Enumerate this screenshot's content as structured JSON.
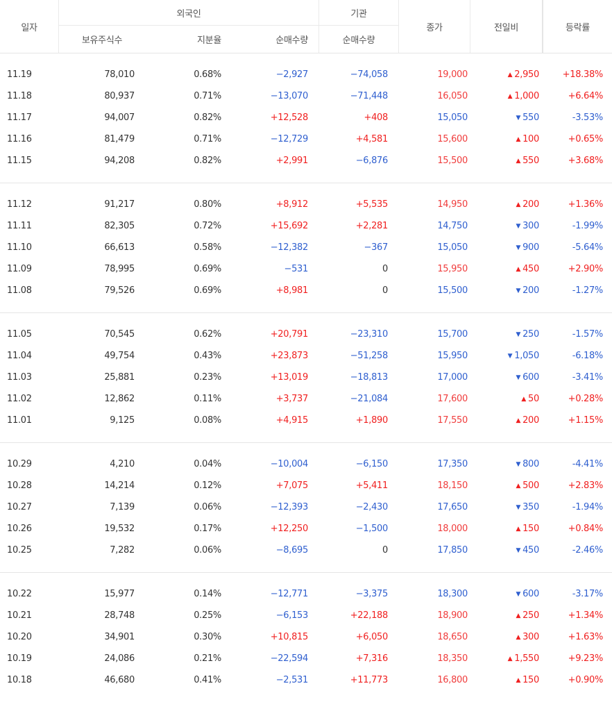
{
  "header": {
    "date": "일자",
    "foreign": "외국인",
    "holdings": "보유주식수",
    "ratio": "지분율",
    "foreign_net": "순매수량",
    "institution": "기관",
    "inst_net": "순매수량",
    "close": "종가",
    "change": "전일비",
    "rate": "등락률"
  },
  "colors": {
    "up": "#f02020",
    "down": "#2f5fcf"
  },
  "groups": [
    [
      [
        "11.19",
        "78,010",
        "0.68%",
        "−2,927",
        "−74,058",
        "19,000",
        "up",
        "2,950",
        "+18.38%"
      ],
      [
        "11.18",
        "80,937",
        "0.71%",
        "−13,070",
        "−71,448",
        "16,050",
        "up",
        "1,000",
        "+6.64%"
      ],
      [
        "11.17",
        "94,007",
        "0.82%",
        "+12,528",
        "+408",
        "15,050",
        "down",
        "550",
        "-3.53%"
      ],
      [
        "11.16",
        "81,479",
        "0.71%",
        "−12,729",
        "+4,581",
        "15,600",
        "up",
        "100",
        "+0.65%"
      ],
      [
        "11.15",
        "94,208",
        "0.82%",
        "+2,991",
        "−6,876",
        "15,500",
        "up",
        "550",
        "+3.68%"
      ]
    ],
    [
      [
        "11.12",
        "91,217",
        "0.80%",
        "+8,912",
        "+5,535",
        "14,950",
        "up",
        "200",
        "+1.36%"
      ],
      [
        "11.11",
        "82,305",
        "0.72%",
        "+15,692",
        "+2,281",
        "14,750",
        "down",
        "300",
        "-1.99%"
      ],
      [
        "11.10",
        "66,613",
        "0.58%",
        "−12,382",
        "−367",
        "15,050",
        "down",
        "900",
        "-5.64%"
      ],
      [
        "11.09",
        "78,995",
        "0.69%",
        "−531",
        "0",
        "15,950",
        "up",
        "450",
        "+2.90%"
      ],
      [
        "11.08",
        "79,526",
        "0.69%",
        "+8,981",
        "0",
        "15,500",
        "down",
        "200",
        "-1.27%"
      ]
    ],
    [
      [
        "11.05",
        "70,545",
        "0.62%",
        "+20,791",
        "−23,310",
        "15,700",
        "down",
        "250",
        "-1.57%"
      ],
      [
        "11.04",
        "49,754",
        "0.43%",
        "+23,873",
        "−51,258",
        "15,950",
        "down",
        "1,050",
        "-6.18%"
      ],
      [
        "11.03",
        "25,881",
        "0.23%",
        "+13,019",
        "−18,813",
        "17,000",
        "down",
        "600",
        "-3.41%"
      ],
      [
        "11.02",
        "12,862",
        "0.11%",
        "+3,737",
        "−21,084",
        "17,600",
        "up",
        "50",
        "+0.28%"
      ],
      [
        "11.01",
        "9,125",
        "0.08%",
        "+4,915",
        "+1,890",
        "17,550",
        "up",
        "200",
        "+1.15%"
      ]
    ],
    [
      [
        "10.29",
        "4,210",
        "0.04%",
        "−10,004",
        "−6,150",
        "17,350",
        "down",
        "800",
        "-4.41%"
      ],
      [
        "10.28",
        "14,214",
        "0.12%",
        "+7,075",
        "+5,411",
        "18,150",
        "up",
        "500",
        "+2.83%"
      ],
      [
        "10.27",
        "7,139",
        "0.06%",
        "−12,393",
        "−2,430",
        "17,650",
        "down",
        "350",
        "-1.94%"
      ],
      [
        "10.26",
        "19,532",
        "0.17%",
        "+12,250",
        "−1,500",
        "18,000",
        "up",
        "150",
        "+0.84%"
      ],
      [
        "10.25",
        "7,282",
        "0.06%",
        "−8,695",
        "0",
        "17,850",
        "down",
        "450",
        "-2.46%"
      ]
    ],
    [
      [
        "10.22",
        "15,977",
        "0.14%",
        "−12,771",
        "−3,375",
        "18,300",
        "down",
        "600",
        "-3.17%"
      ],
      [
        "10.21",
        "28,748",
        "0.25%",
        "−6,153",
        "+22,188",
        "18,900",
        "up",
        "250",
        "+1.34%"
      ],
      [
        "10.20",
        "34,901",
        "0.30%",
        "+10,815",
        "+6,050",
        "18,650",
        "up",
        "300",
        "+1.63%"
      ],
      [
        "10.19",
        "24,086",
        "0.21%",
        "−22,594",
        "+7,316",
        "18,350",
        "up",
        "1,550",
        "+9.23%"
      ],
      [
        "10.18",
        "46,680",
        "0.41%",
        "−2,531",
        "+11,773",
        "16,800",
        "up",
        "150",
        "+0.90%"
      ]
    ]
  ]
}
